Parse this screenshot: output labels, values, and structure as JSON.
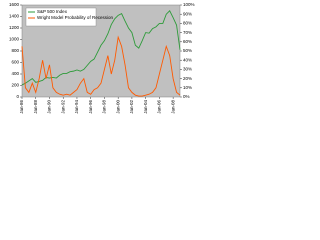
{
  "chart_data": {
    "type": "line",
    "x": [
      1986,
      1986.5,
      1987,
      1987.5,
      1988,
      1988.5,
      1989,
      1989.5,
      1990,
      1990.5,
      1991,
      1991.5,
      1992,
      1992.5,
      1993,
      1993.5,
      1994,
      1994.5,
      1995,
      1995.5,
      1996,
      1996.5,
      1997,
      1997.5,
      1998,
      1998.5,
      1999,
      1999.5,
      2000,
      2000.5,
      2001,
      2001.5,
      2002,
      2002.5,
      2003,
      2003.5,
      2004,
      2004.5,
      2005,
      2005.5,
      2006,
      2006.5,
      2007,
      2007.5,
      2008,
      2008.5,
      2009
    ],
    "series": [
      {
        "name": "S&P 500 Index",
        "color": "#2e9b3a",
        "values": [
          210,
          240,
          280,
          320,
          255,
          270,
          290,
          340,
          330,
          340,
          330,
          380,
          410,
          410,
          440,
          450,
          470,
          450,
          480,
          550,
          620,
          660,
          780,
          900,
          980,
          1100,
          1260,
          1360,
          1420,
          1450,
          1320,
          1200,
          1120,
          900,
          850,
          980,
          1120,
          1110,
          1190,
          1220,
          1280,
          1280,
          1440,
          1500,
          1380,
          1250,
          820
        ]
      },
      {
        "name": "Wright Model Probability of Recession",
        "color": "#ff5a00",
        "axis": "y2",
        "values": [
          55,
          10,
          5,
          15,
          5,
          20,
          40,
          20,
          35,
          10,
          5,
          3,
          2,
          3,
          2,
          5,
          8,
          15,
          20,
          5,
          3,
          8,
          10,
          15,
          30,
          45,
          25,
          40,
          65,
          55,
          35,
          10,
          5,
          2,
          1,
          1,
          2,
          3,
          5,
          10,
          25,
          40,
          55,
          45,
          20,
          5,
          2
        ]
      }
    ],
    "xlim": [
      1986,
      2009
    ],
    "xticks": [
      {
        "value": 1986,
        "label": "Jan-86"
      },
      {
        "value": 1988,
        "label": "Jan-88"
      },
      {
        "value": 1990,
        "label": "Jan-90"
      },
      {
        "value": 1992,
        "label": "Jan-92"
      },
      {
        "value": 1994,
        "label": "Jan-94"
      },
      {
        "value": 1996,
        "label": "Jan-96"
      },
      {
        "value": 1998,
        "label": "Jan-98"
      },
      {
        "value": 2000,
        "label": "Jan-00"
      },
      {
        "value": 2002,
        "label": "Jan-02"
      },
      {
        "value": 2004,
        "label": "Jan-04"
      },
      {
        "value": 2006,
        "label": "Jan-06"
      },
      {
        "value": 2008,
        "label": "Jan-08"
      }
    ],
    "ylim": [
      0,
      1600
    ],
    "yticks": [
      0,
      200,
      400,
      600,
      800,
      1000,
      1200,
      1400,
      1600
    ],
    "y2lim": [
      0,
      100
    ],
    "y2ticks": [
      {
        "value": 0,
        "label": "0%"
      },
      {
        "value": 10,
        "label": "10%"
      },
      {
        "value": 20,
        "label": "20%"
      },
      {
        "value": 30,
        "label": "30%"
      },
      {
        "value": 40,
        "label": "40%"
      },
      {
        "value": 50,
        "label": "50%"
      },
      {
        "value": 60,
        "label": "60%"
      },
      {
        "value": 70,
        "label": "70%"
      },
      {
        "value": 80,
        "label": "80%"
      },
      {
        "value": 90,
        "label": "90%"
      },
      {
        "value": 100,
        "label": "100%"
      }
    ],
    "legend": "top-left"
  }
}
